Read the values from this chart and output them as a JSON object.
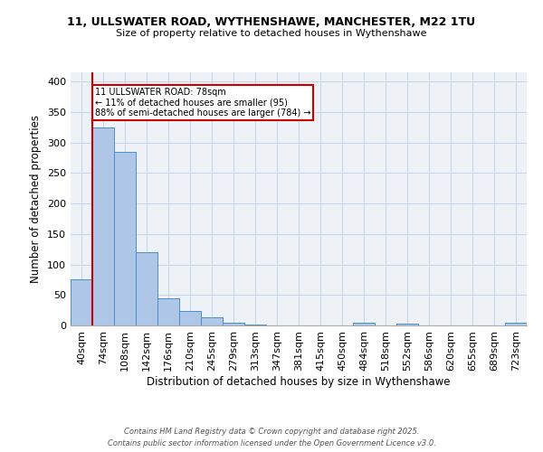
{
  "title1": "11, ULLSWATER ROAD, WYTHENSHAWE, MANCHESTER, M22 1TU",
  "title2": "Size of property relative to detached houses in Wythenshawe",
  "xlabel": "Distribution of detached houses by size in Wythenshawe",
  "ylabel": "Number of detached properties",
  "bin_labels": [
    "40sqm",
    "74sqm",
    "108sqm",
    "142sqm",
    "176sqm",
    "210sqm",
    "245sqm",
    "279sqm",
    "313sqm",
    "347sqm",
    "381sqm",
    "415sqm",
    "450sqm",
    "484sqm",
    "518sqm",
    "552sqm",
    "586sqm",
    "620sqm",
    "655sqm",
    "689sqm",
    "723sqm"
  ],
  "bar_heights": [
    75,
    325,
    285,
    120,
    44,
    23,
    14,
    4,
    1,
    0,
    0,
    0,
    0,
    5,
    0,
    3,
    0,
    0,
    0,
    0,
    4
  ],
  "bar_color": "#aec6e8",
  "bar_edge_color": "#4a90c4",
  "grid_color": "#c8d8e8",
  "background_color": "#eef2f7",
  "annotation_text": "11 ULLSWATER ROAD: 78sqm\n← 11% of detached houses are smaller (95)\n88% of semi-detached houses are larger (784) →",
  "annotation_box_color": "#ffffff",
  "annotation_box_edge": "#cc0000",
  "property_line_color": "#cc0000",
  "footer1": "Contains HM Land Registry data © Crown copyright and database right 2025.",
  "footer2": "Contains public sector information licensed under the Open Government Licence v3.0.",
  "yticks": [
    0,
    50,
    100,
    150,
    200,
    250,
    300,
    350,
    400
  ],
  "ylim": [
    0,
    415
  ]
}
